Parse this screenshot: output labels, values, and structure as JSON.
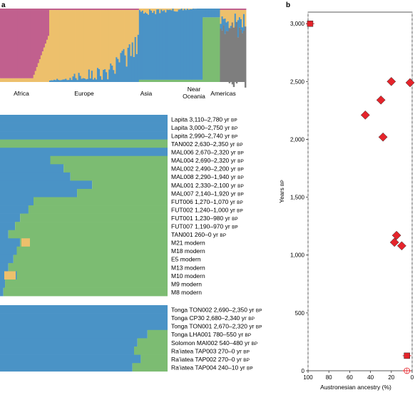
{
  "panels": {
    "a": "a",
    "b": "b"
  },
  "colors": {
    "africa": "#c1608e",
    "europe": "#edc06c",
    "asia": "#4a93c6",
    "oceania": "#7cbc72",
    "americas": "#7e7e7e",
    "marker": "#e5242b",
    "dashed": "#cccccc"
  },
  "admixture_top": {
    "regions": [
      "Africa",
      "Europe",
      "Asia",
      "Near\nOceania",
      "Americas"
    ]
  },
  "group1": [
    {
      "name": "Lapita",
      "dates": "3,110–2,780",
      "unit": "yr BP",
      "asian": 1.0
    },
    {
      "name": "Lapita",
      "dates": "3,000–2,750",
      "unit": "yr BP",
      "asian": 1.0
    },
    {
      "name": "Lapita",
      "dates": "2,990–2,740",
      "unit": "yr BP",
      "asian": 1.0
    },
    {
      "name": "TAN002",
      "dates": "2,630–2,350",
      "unit": "yr BP",
      "asian": 0.0
    },
    {
      "name": "MAL006",
      "dates": "2,670–2,320",
      "unit": "yr BP",
      "asian": 1.0
    },
    {
      "name": "MAL004",
      "dates": "2,690–2,320",
      "unit": "yr BP",
      "asian": 0.3
    },
    {
      "name": "MAL002",
      "dates": "2,490–2,200",
      "unit": "yr BP",
      "asian": 0.38
    },
    {
      "name": "MAL008",
      "dates": "2,290–1,940",
      "unit": "yr BP",
      "asian": 0.42
    },
    {
      "name": "MAL001",
      "dates": "2,330–2,100",
      "unit": "yr BP",
      "asian": 0.55
    },
    {
      "name": "MAL007",
      "dates": "2,140–1,920",
      "unit": "yr BP",
      "asian": 0.46
    },
    {
      "name": "FUT006",
      "dates": "1,270–1,070",
      "unit": "yr BP",
      "asian": 0.2
    },
    {
      "name": "FUT002",
      "dates": "1,240–1,000",
      "unit": "yr BP",
      "asian": 0.17
    },
    {
      "name": "FUT001",
      "dates": "1,230–980",
      "unit": "yr BP",
      "asian": 0.12
    },
    {
      "name": "FUT007",
      "dates": "1,190–970",
      "unit": "yr BP",
      "asian": 0.09
    },
    {
      "name": "TAN001",
      "dates": "260–0",
      "unit": "yr BP",
      "asian": 0.05
    },
    {
      "name": "M21",
      "dates": "modern",
      "unit": "",
      "asian": 0.12
    },
    {
      "name": "M18",
      "dates": "modern",
      "unit": "",
      "asian": 0.1
    },
    {
      "name": "E5",
      "dates": "modern",
      "unit": "",
      "asian": 0.08
    },
    {
      "name": "M13",
      "dates": "modern",
      "unit": "",
      "asian": 0.05
    },
    {
      "name": "M10",
      "dates": "modern",
      "unit": "",
      "asian": 0.1
    },
    {
      "name": "M9",
      "dates": "modern",
      "unit": "",
      "asian": 0.03
    },
    {
      "name": "M8",
      "dates": "modern",
      "unit": "",
      "asian": 0.02
    }
  ],
  "group2": [
    {
      "name": "Tonga TON002",
      "dates": "2,690–2,350",
      "unit": "yr BP",
      "asian": 1.0
    },
    {
      "name": "Tonga CP30",
      "dates": "2,680–2,340",
      "unit": "yr BP",
      "asian": 1.0
    },
    {
      "name": "Tonga TON001",
      "dates": "2,670–2,320",
      "unit": "yr BP",
      "asian": 1.0
    },
    {
      "name": "Tonga LHA001",
      "dates": "780–550",
      "unit": "yr BP",
      "asian": 0.88
    },
    {
      "name": "Solomon MAI002",
      "dates": "540–480",
      "unit": "yr BP",
      "asian": 0.82
    },
    {
      "name": "Ra’iatea TAP003",
      "dates": "270–0",
      "unit": "yr BP",
      "asian": 0.8
    },
    {
      "name": "Ra’iatea TAP002",
      "dates": "270–0",
      "unit": "yr BP",
      "asian": 0.84
    },
    {
      "name": "Ra’iatea TAP004",
      "dates": "240–10",
      "unit": "yr BP",
      "asian": 0.79
    }
  ],
  "chart_data": {
    "type": "scatter",
    "xlabel": "Austronesian ancestry (%)",
    "ylabel": "Years BP",
    "xlim": [
      100,
      0
    ],
    "ylim": [
      0,
      3100
    ],
    "xticks": [
      100,
      80,
      60,
      40,
      20,
      0
    ],
    "yticks": [
      0,
      500,
      1000,
      1500,
      2000,
      2500,
      3000
    ],
    "ytick_labels": [
      "0",
      "500",
      "1,000",
      "1,500",
      "2,000",
      "2,500",
      "3,000"
    ],
    "points": [
      {
        "x": 98,
        "y": 3000,
        "shape": "square"
      },
      {
        "x": 20,
        "y": 2500,
        "shape": "diamond"
      },
      {
        "x": 2,
        "y": 2490,
        "shape": "diamond"
      },
      {
        "x": 30,
        "y": 2340,
        "shape": "diamond"
      },
      {
        "x": 45,
        "y": 2210,
        "shape": "diamond"
      },
      {
        "x": 28,
        "y": 2020,
        "shape": "diamond"
      },
      {
        "x": 15,
        "y": 1170,
        "shape": "diamond"
      },
      {
        "x": 17,
        "y": 1110,
        "shape": "diamond"
      },
      {
        "x": 10,
        "y": 1080,
        "shape": "diamond"
      },
      {
        "x": 5,
        "y": 130,
        "shape": "square"
      },
      {
        "x": 5,
        "y": 0,
        "shape": "circle"
      }
    ]
  }
}
